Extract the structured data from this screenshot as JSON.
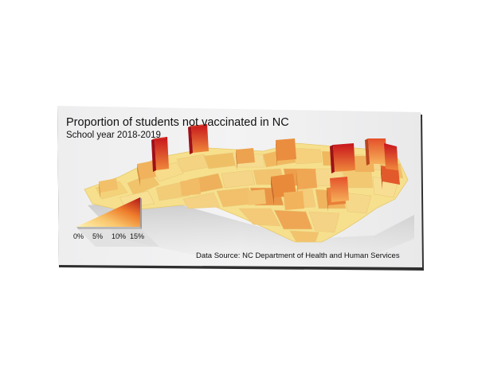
{
  "title": "Proportion of students not vaccinated in NC",
  "subtitle": "School year 2018-2019",
  "source": "Data Source: NC Department of Health and Human Services",
  "legend": {
    "ticks": [
      "0%",
      "5%",
      "10%",
      "15%"
    ],
    "colors": [
      "#fff3b0",
      "#f9c56b",
      "#ee7d2b",
      "#cc1c1c",
      "#8b0b1a"
    ]
  },
  "map": {
    "region": "North Carolina counties",
    "metric": "Proportion of students not vaccinated",
    "tallest_columns": [
      "northwest mountains",
      "northeast coastal plain"
    ]
  }
}
